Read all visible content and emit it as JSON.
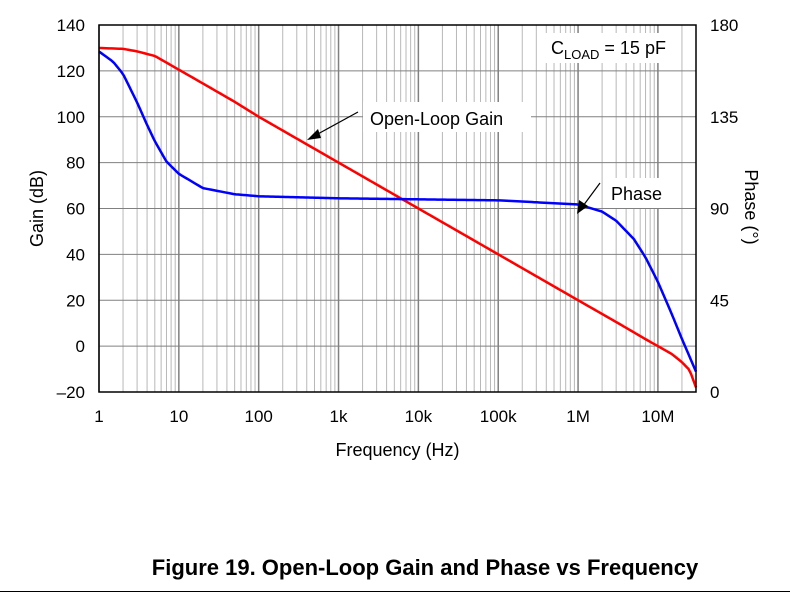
{
  "caption": "Figure 19. Open-Loop Gain and Phase vs Frequency",
  "chart_data": {
    "type": "line",
    "xscale": "log",
    "x_ticks": [
      1,
      10,
      100,
      1000,
      10000,
      100000,
      1000000,
      10000000
    ],
    "x_tick_labels": [
      "1",
      "10",
      "100",
      "1k",
      "10k",
      "100k",
      "1M",
      "10M"
    ],
    "xlim": [
      1,
      30000000
    ],
    "xlabel": "Frequency (Hz)",
    "ylabel_left": "Gain (dB)",
    "ylim_left": [
      -20,
      140
    ],
    "y_ticks_left": [
      -20,
      0,
      20,
      40,
      60,
      80,
      100,
      120,
      140
    ],
    "y_tick_labels_left": [
      "–20",
      "0",
      "20",
      "40",
      "60",
      "80",
      "100",
      "120",
      "140"
    ],
    "ylabel_right": "Phase (°)",
    "ylim_right": [
      0,
      180
    ],
    "y_ticks_right": [
      0,
      45,
      90,
      135,
      180
    ],
    "y_tick_labels_right": [
      "0",
      "45",
      "90",
      "135",
      "180"
    ],
    "grid": true,
    "annotation": {
      "text_main": "C",
      "text_sub": "LOAD",
      "text_rest": " = 15 pF"
    },
    "series": [
      {
        "name": "Open-Loop Gain",
        "axis": "left",
        "color": "#ff0000",
        "x": [
          1,
          2,
          3,
          5,
          10,
          20,
          50,
          100,
          1000,
          10000,
          100000,
          1000000,
          3000000,
          5000000,
          7000000,
          10000000,
          15000000,
          20000000,
          25000000,
          30000000
        ],
        "y": [
          130,
          129.6,
          128.5,
          126.5,
          120.5,
          114.5,
          106.5,
          100,
          80,
          60,
          40,
          20,
          10.5,
          6,
          3,
          0,
          -3.5,
          -7,
          -10.5,
          -18
        ]
      },
      {
        "name": "Phase",
        "axis": "right",
        "color": "#0000ff",
        "x": [
          1,
          1.5,
          2,
          3,
          4,
          5,
          7,
          10,
          20,
          50,
          100,
          1000,
          10000,
          100000,
          1000000,
          2000000,
          3000000,
          5000000,
          7000000,
          10000000,
          15000000,
          20000000,
          30000000
        ],
        "y": [
          167,
          162,
          156,
          142,
          131,
          123,
          113,
          107,
          100,
          97,
          96,
          95,
          94.5,
          94,
          92,
          88.5,
          84,
          75,
          66,
          54,
          38,
          26,
          10
        ]
      }
    ]
  }
}
